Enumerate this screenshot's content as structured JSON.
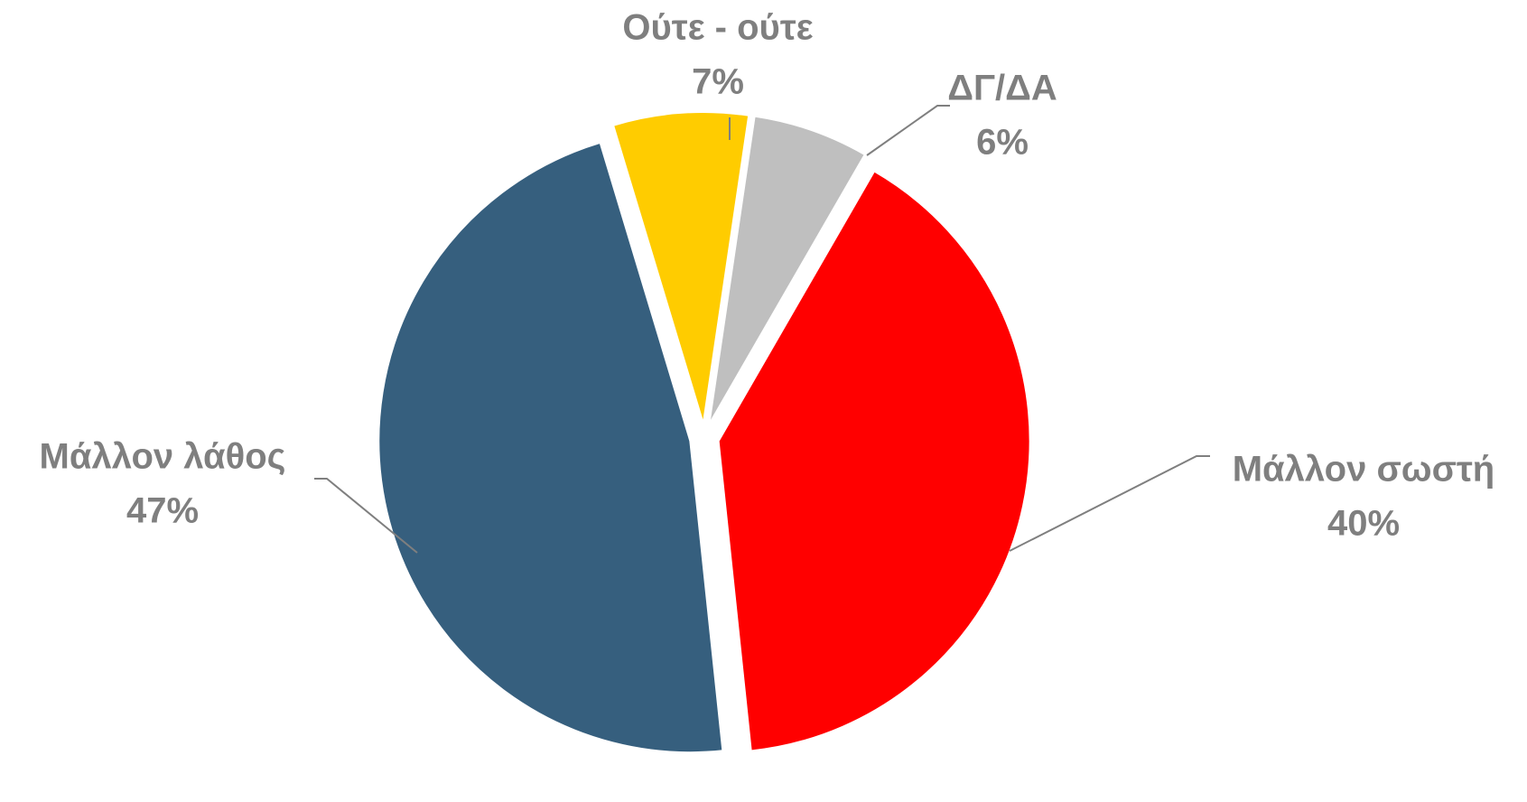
{
  "chart_data": {
    "type": "pie",
    "categories": [
      "Μάλλον σωστή",
      "Μάλλον λάθος",
      "Ούτε - ούτε",
      "ΔΓ/ΔΑ"
    ],
    "values": [
      40,
      47,
      7,
      6
    ],
    "value_labels": [
      "40%",
      "47%",
      "7%",
      "6%"
    ],
    "colors": [
      "#ff0000",
      "#365f7e",
      "#ffcc00",
      "#bfbfbf"
    ]
  }
}
